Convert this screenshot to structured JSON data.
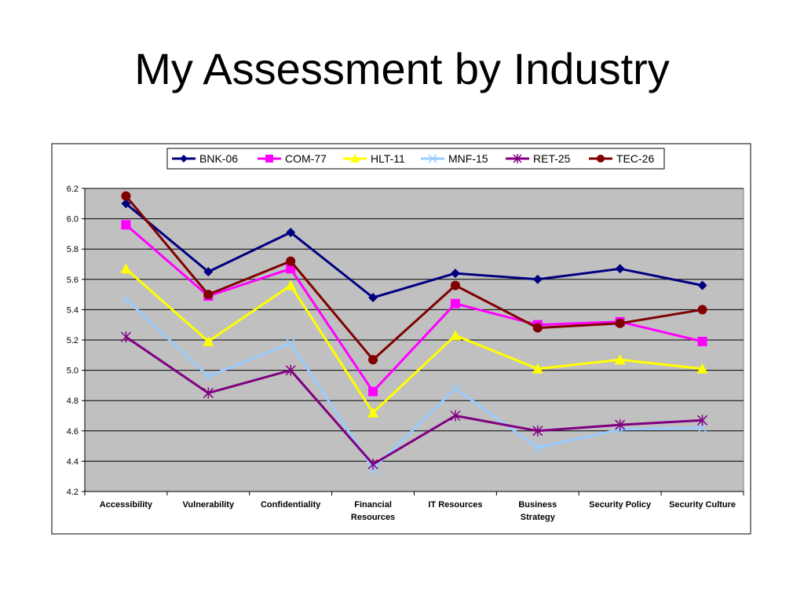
{
  "page": {
    "title": "My Assessment by Industry"
  },
  "chart_data": {
    "type": "line",
    "categories": [
      [
        "Accessibility"
      ],
      [
        "Vulnerability"
      ],
      [
        "Confidentiality"
      ],
      [
        "Financial",
        "Resources"
      ],
      [
        "IT Resources"
      ],
      [
        "Business",
        "Strategy"
      ],
      [
        "Security Policy"
      ],
      [
        "Security Culture"
      ]
    ],
    "ylim": [
      4.2,
      6.2
    ],
    "ytick_step": 0.2,
    "ytick_labels": [
      "4.2",
      "4.4",
      "4.6",
      "4.8",
      "5.0",
      "5.2",
      "5.4",
      "5.6",
      "5.8",
      "6.0",
      "6.2"
    ],
    "grid": true,
    "plot_background": "#C0C0C0",
    "legend_position": "top",
    "series": [
      {
        "name": "BNK-06",
        "color": "#000080",
        "marker": "diamond",
        "values": [
          6.1,
          5.65,
          5.91,
          5.48,
          5.64,
          5.6,
          5.67,
          5.56
        ]
      },
      {
        "name": "COM-77",
        "color": "#FF00FF",
        "marker": "square",
        "values": [
          5.96,
          5.49,
          5.67,
          4.86,
          5.44,
          5.3,
          5.32,
          5.19
        ]
      },
      {
        "name": "HLT-11",
        "color": "#FFFF00",
        "marker": "triangle",
        "values": [
          5.67,
          5.19,
          5.56,
          4.72,
          5.23,
          5.01,
          5.07,
          5.01
        ]
      },
      {
        "name": "MNF-15",
        "color": "#99CCFF",
        "marker": "x",
        "values": [
          5.47,
          4.96,
          5.18,
          4.35,
          4.88,
          4.49,
          4.61,
          4.62
        ]
      },
      {
        "name": "RET-25",
        "color": "#800080",
        "marker": "star",
        "values": [
          5.22,
          4.85,
          5.0,
          4.38,
          4.7,
          4.6,
          4.64,
          4.67
        ]
      },
      {
        "name": "TEC-26",
        "color": "#800000",
        "marker": "circle",
        "values": [
          6.15,
          5.5,
          5.72,
          5.07,
          5.56,
          5.28,
          5.31,
          5.4
        ]
      }
    ]
  }
}
